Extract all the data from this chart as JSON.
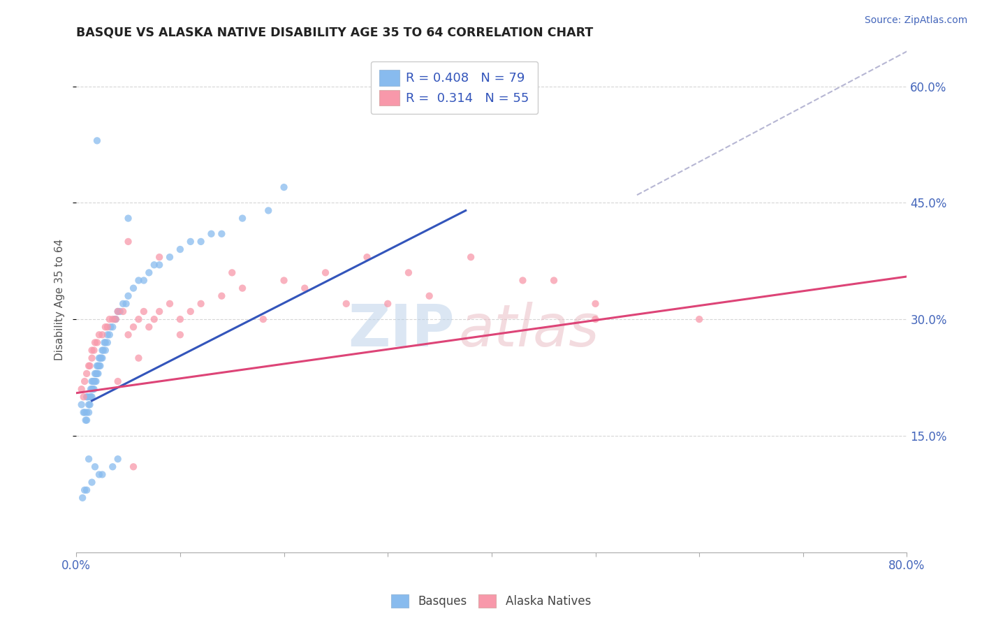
{
  "title": "BASQUE VS ALASKA NATIVE DISABILITY AGE 35 TO 64 CORRELATION CHART",
  "source": "Source: ZipAtlas.com",
  "ylabel": "Disability Age 35 to 64",
  "xlim": [
    0.0,
    0.8
  ],
  "ylim": [
    0.0,
    0.65
  ],
  "xtick_positions": [
    0.0,
    0.1,
    0.2,
    0.3,
    0.4,
    0.5,
    0.6,
    0.7,
    0.8
  ],
  "xticklabels": [
    "0.0%",
    "",
    "",
    "",
    "",
    "",
    "",
    "",
    "80.0%"
  ],
  "ytick_positions": [
    0.15,
    0.3,
    0.45,
    0.6
  ],
  "yticklabels_right": [
    "15.0%",
    "30.0%",
    "45.0%",
    "60.0%"
  ],
  "legend_r1": "R = 0.408",
  "legend_n1": "N = 79",
  "legend_r2": "R =  0.314",
  "legend_n2": "N = 55",
  "blue_color": "#88bbee",
  "pink_color": "#f898aa",
  "trend_blue": "#3355bb",
  "trend_pink": "#dd4477",
  "trend_gray": "#aaaacc",
  "blue_trend_x": [
    0.015,
    0.375
  ],
  "blue_trend_y": [
    0.195,
    0.44
  ],
  "pink_trend_x": [
    0.0,
    0.8
  ],
  "pink_trend_y": [
    0.205,
    0.355
  ],
  "gray_trend_x": [
    0.54,
    0.8
  ],
  "gray_trend_y": [
    0.46,
    0.645
  ],
  "basques_x": [
    0.005,
    0.007,
    0.008,
    0.009,
    0.01,
    0.01,
    0.01,
    0.011,
    0.012,
    0.012,
    0.013,
    0.013,
    0.014,
    0.014,
    0.015,
    0.015,
    0.015,
    0.016,
    0.016,
    0.017,
    0.017,
    0.018,
    0.018,
    0.019,
    0.019,
    0.02,
    0.02,
    0.021,
    0.021,
    0.022,
    0.022,
    0.023,
    0.023,
    0.024,
    0.025,
    0.025,
    0.026,
    0.027,
    0.028,
    0.028,
    0.03,
    0.03,
    0.032,
    0.033,
    0.035,
    0.037,
    0.038,
    0.04,
    0.042,
    0.045,
    0.048,
    0.05,
    0.055,
    0.06,
    0.065,
    0.07,
    0.075,
    0.08,
    0.09,
    0.1,
    0.11,
    0.12,
    0.13,
    0.14,
    0.16,
    0.185,
    0.02,
    0.05,
    0.2,
    0.04,
    0.035,
    0.025,
    0.015,
    0.01,
    0.008,
    0.006,
    0.012,
    0.018,
    0.022
  ],
  "basques_y": [
    0.19,
    0.18,
    0.18,
    0.17,
    0.2,
    0.18,
    0.17,
    0.2,
    0.19,
    0.18,
    0.2,
    0.19,
    0.21,
    0.2,
    0.22,
    0.21,
    0.2,
    0.22,
    0.21,
    0.22,
    0.21,
    0.23,
    0.22,
    0.23,
    0.22,
    0.24,
    0.23,
    0.24,
    0.23,
    0.25,
    0.24,
    0.25,
    0.24,
    0.25,
    0.26,
    0.25,
    0.26,
    0.27,
    0.27,
    0.26,
    0.28,
    0.27,
    0.28,
    0.29,
    0.29,
    0.3,
    0.3,
    0.31,
    0.31,
    0.32,
    0.32,
    0.33,
    0.34,
    0.35,
    0.35,
    0.36,
    0.37,
    0.37,
    0.38,
    0.39,
    0.4,
    0.4,
    0.41,
    0.41,
    0.43,
    0.44,
    0.53,
    0.43,
    0.47,
    0.12,
    0.11,
    0.1,
    0.09,
    0.08,
    0.08,
    0.07,
    0.12,
    0.11,
    0.1
  ],
  "alaska_x": [
    0.005,
    0.007,
    0.008,
    0.01,
    0.012,
    0.013,
    0.015,
    0.015,
    0.017,
    0.018,
    0.02,
    0.022,
    0.025,
    0.028,
    0.03,
    0.032,
    0.035,
    0.038,
    0.04,
    0.045,
    0.05,
    0.055,
    0.06,
    0.065,
    0.07,
    0.075,
    0.08,
    0.09,
    0.1,
    0.11,
    0.12,
    0.14,
    0.16,
    0.2,
    0.24,
    0.28,
    0.32,
    0.38,
    0.43,
    0.5,
    0.6,
    0.05,
    0.08,
    0.15,
    0.22,
    0.3,
    0.04,
    0.06,
    0.1,
    0.18,
    0.26,
    0.34,
    0.46,
    0.055,
    0.5
  ],
  "alaska_y": [
    0.21,
    0.2,
    0.22,
    0.23,
    0.24,
    0.24,
    0.25,
    0.26,
    0.26,
    0.27,
    0.27,
    0.28,
    0.28,
    0.29,
    0.29,
    0.3,
    0.3,
    0.3,
    0.31,
    0.31,
    0.28,
    0.29,
    0.3,
    0.31,
    0.29,
    0.3,
    0.31,
    0.32,
    0.3,
    0.31,
    0.32,
    0.33,
    0.34,
    0.35,
    0.36,
    0.38,
    0.36,
    0.38,
    0.35,
    0.32,
    0.3,
    0.4,
    0.38,
    0.36,
    0.34,
    0.32,
    0.22,
    0.25,
    0.28,
    0.3,
    0.32,
    0.33,
    0.35,
    0.11,
    0.3
  ]
}
